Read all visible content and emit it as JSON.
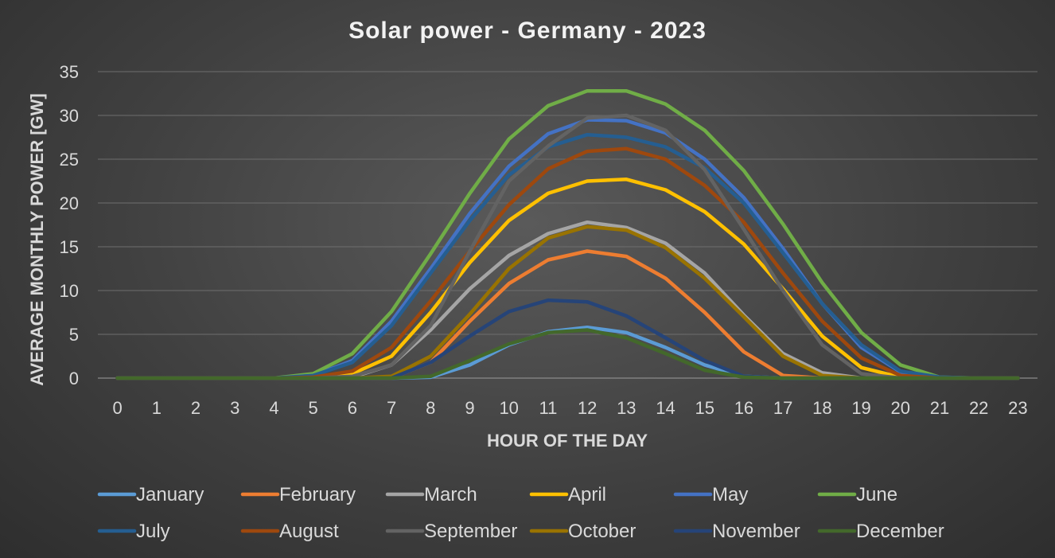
{
  "chart_data": {
    "type": "line",
    "title": "Solar power - Germany - 2023",
    "xlabel": "HOUR OF THE DAY",
    "ylabel": "AVERAGE MONTHLY POWER [GW]",
    "x": [
      0,
      1,
      2,
      3,
      4,
      5,
      6,
      7,
      8,
      9,
      10,
      11,
      12,
      13,
      14,
      15,
      16,
      17,
      18,
      19,
      20,
      21,
      22,
      23
    ],
    "ylim": [
      0,
      35
    ],
    "yticks": [
      0,
      5,
      10,
      15,
      20,
      25,
      30,
      35
    ],
    "grid": true,
    "legend_position": "bottom",
    "series": [
      {
        "name": "January",
        "color": "#5b9bd5",
        "values": [
          0,
          0,
          0,
          0,
          0,
          0,
          0,
          0,
          0.1,
          1.5,
          3.8,
          5.3,
          5.8,
          5.2,
          3.5,
          1.5,
          0.2,
          0,
          0,
          0,
          0,
          0,
          0,
          0
        ]
      },
      {
        "name": "February",
        "color": "#ed7d31",
        "values": [
          0,
          0,
          0,
          0,
          0,
          0,
          0,
          0,
          1.8,
          6.5,
          10.8,
          13.5,
          14.5,
          13.9,
          11.4,
          7.5,
          3.0,
          0.3,
          0,
          0,
          0,
          0,
          0,
          0
        ]
      },
      {
        "name": "March",
        "color": "#a5a5a5",
        "values": [
          0,
          0,
          0,
          0,
          0,
          0,
          0.1,
          1.5,
          5.5,
          10.2,
          14.0,
          16.5,
          17.8,
          17.2,
          15.4,
          12.0,
          7.2,
          2.8,
          0.6,
          0,
          0,
          0,
          0,
          0
        ]
      },
      {
        "name": "April",
        "color": "#ffc000",
        "values": [
          0,
          0,
          0,
          0,
          0,
          0.1,
          0.5,
          2.5,
          7.5,
          13.2,
          18.0,
          21.1,
          22.5,
          22.7,
          21.5,
          19.0,
          15.3,
          10.2,
          4.8,
          1.2,
          0.1,
          0,
          0,
          0
        ]
      },
      {
        "name": "May",
        "color": "#4472c4",
        "values": [
          0,
          0,
          0,
          0,
          0,
          0.3,
          2.0,
          6.5,
          12.5,
          18.8,
          24.2,
          27.9,
          29.5,
          29.4,
          28.0,
          25.0,
          20.6,
          14.8,
          8.5,
          3.5,
          0.7,
          0,
          0,
          0
        ]
      },
      {
        "name": "June",
        "color": "#70ad47",
        "values": [
          0,
          0,
          0,
          0,
          0,
          0.5,
          2.8,
          7.6,
          14.2,
          21.1,
          27.3,
          31.1,
          32.8,
          32.8,
          31.3,
          28.3,
          23.7,
          17.6,
          10.9,
          5.2,
          1.5,
          0.1,
          0,
          0
        ]
      },
      {
        "name": "July",
        "color": "#255e91",
        "values": [
          0,
          0,
          0,
          0,
          0,
          0.3,
          1.8,
          6.0,
          12.0,
          18.0,
          23.2,
          26.4,
          27.8,
          27.5,
          26.4,
          24.0,
          20.0,
          14.3,
          8.5,
          3.8,
          0.8,
          0.1,
          0,
          0
        ]
      },
      {
        "name": "August",
        "color": "#9e480e",
        "values": [
          0,
          0,
          0,
          0,
          0,
          0.1,
          0.8,
          3.5,
          8.8,
          14.5,
          19.8,
          23.9,
          25.9,
          26.2,
          25.0,
          22.0,
          17.8,
          12.0,
          6.5,
          2.3,
          0.3,
          0,
          0,
          0
        ]
      },
      {
        "name": "September",
        "color": "#636363",
        "values": [
          0,
          0,
          0,
          0,
          0,
          0,
          0.2,
          1.5,
          6.0,
          14.5,
          22.5,
          26.5,
          29.7,
          30.0,
          28.3,
          23.8,
          17.0,
          10.0,
          3.8,
          0.5,
          0,
          0,
          0,
          0
        ]
      },
      {
        "name": "October",
        "color": "#997300",
        "values": [
          0,
          0,
          0,
          0,
          0,
          0,
          0,
          0.2,
          2.5,
          7.3,
          12.5,
          16.0,
          17.3,
          16.9,
          14.9,
          11.4,
          7.0,
          2.5,
          0.3,
          0,
          0,
          0,
          0,
          0
        ]
      },
      {
        "name": "November",
        "color": "#264478",
        "values": [
          0,
          0,
          0,
          0,
          0,
          0,
          0,
          0,
          1.8,
          4.8,
          7.6,
          8.9,
          8.7,
          7.1,
          4.6,
          2.0,
          0.2,
          0,
          0,
          0,
          0,
          0,
          0,
          0
        ]
      },
      {
        "name": "December",
        "color": "#43682b",
        "values": [
          0,
          0,
          0,
          0,
          0,
          0,
          0,
          0,
          0.2,
          2.0,
          3.9,
          5.2,
          5.5,
          4.6,
          2.8,
          0.9,
          0.1,
          0,
          0,
          0,
          0,
          0,
          0,
          0
        ]
      }
    ]
  }
}
